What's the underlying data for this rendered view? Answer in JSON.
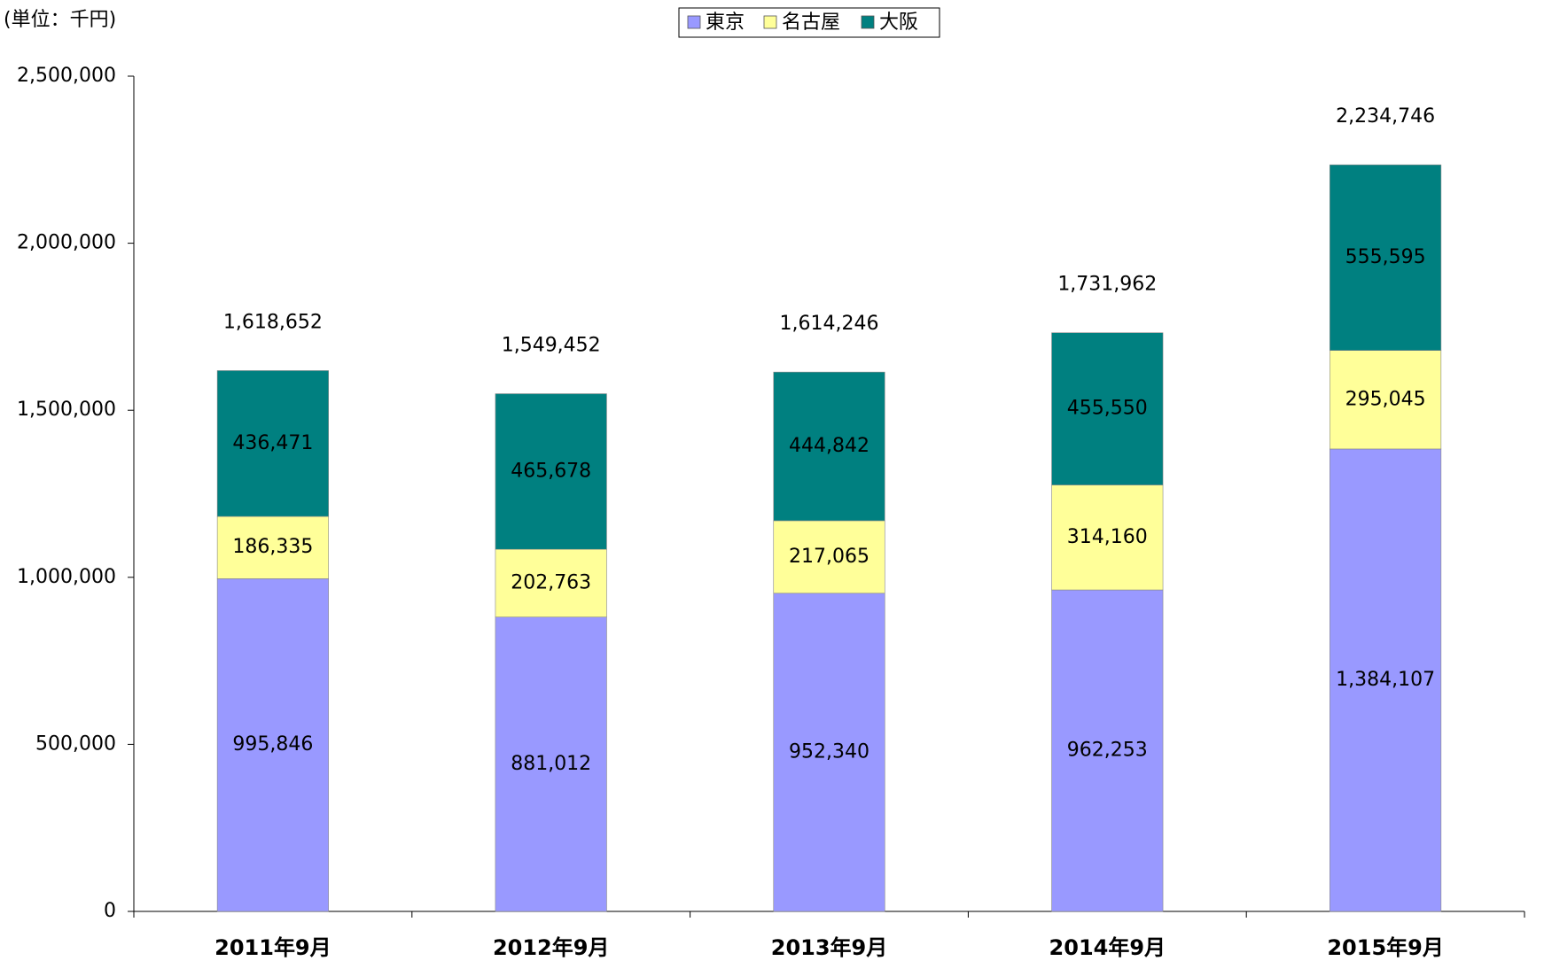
{
  "chart_data": {
    "type": "stacked_bar",
    "y_label": "(単位：千円)",
    "categories": [
      "2011年9月",
      "2012年9月",
      "2013年9月",
      "2014年9月",
      "2015年9月"
    ],
    "series": [
      {
        "name": "東京",
        "color": "#9999ff",
        "values": [
          995846,
          881012,
          952340,
          962253,
          1384107
        ],
        "value_labels": [
          "995,846",
          "881,012",
          "952,340",
          "962,253",
          "1,384,107"
        ]
      },
      {
        "name": "名古屋",
        "color": "#ffff99",
        "values": [
          186335,
          202763,
          217065,
          314160,
          295045
        ],
        "value_labels": [
          "186,335",
          "202,763",
          "217,065",
          "314,160",
          "295,045"
        ]
      },
      {
        "name": "大阪",
        "color": "#008080",
        "values": [
          436471,
          465678,
          444842,
          455550,
          555595
        ],
        "value_labels": [
          "436,471",
          "465,678",
          "444,842",
          "455,550",
          "555,595"
        ]
      }
    ],
    "totals": [
      1618652,
      1549452,
      1614246,
      1731962,
      2234746
    ],
    "total_labels": [
      "1,618,652",
      "1,549,452",
      "1,614,246",
      "1,731,962",
      "2,234,746"
    ],
    "ylim": [
      0,
      2500000
    ],
    "yticks": [
      0,
      {
        "value": 500000,
        "label": "500,000"
      },
      {
        "value": 1000000,
        "label": "1,000,000"
      },
      {
        "value": 1500000,
        "label": "1,500,000"
      },
      {
        "value": 2000000,
        "label": "2,000,000"
      },
      {
        "value": 2500000,
        "label": "2,500,000"
      }
    ],
    "legend": "top"
  }
}
